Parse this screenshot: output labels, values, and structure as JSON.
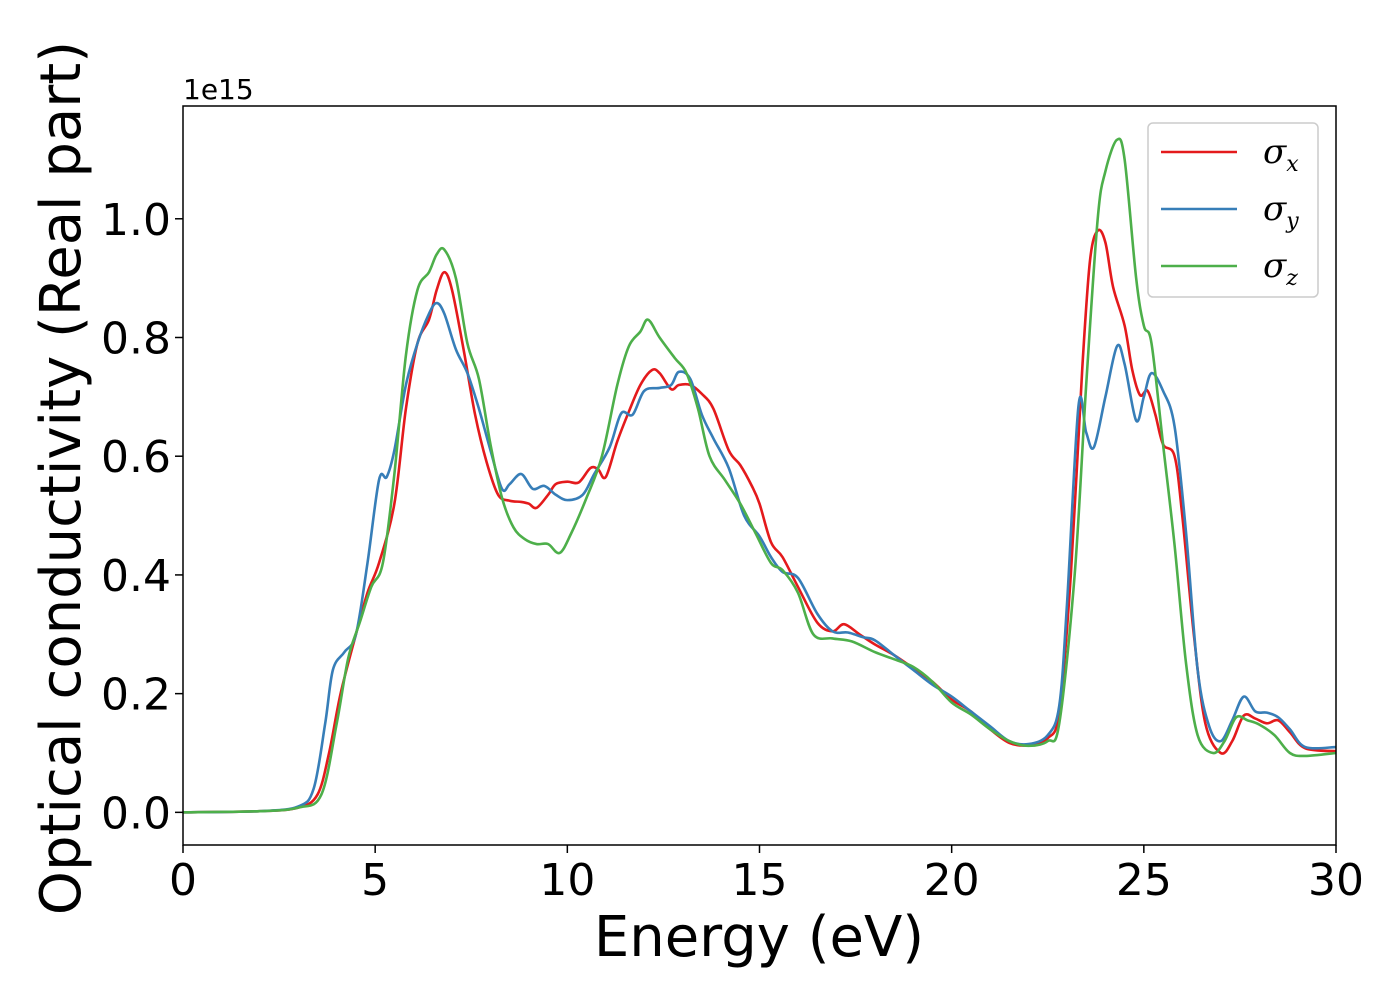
{
  "chart_data": {
    "type": "line",
    "title": "",
    "xlabel": "Energy (eV)",
    "ylabel": "Optical conductivity (Real part)",
    "y_offset_label": "1e15",
    "xlim": [
      0,
      30
    ],
    "ylim": [
      -0.055,
      1.19
    ],
    "xticks": [
      0,
      5,
      10,
      15,
      20,
      25,
      30
    ],
    "yticks": [
      0.0,
      0.2,
      0.4,
      0.6,
      0.8,
      1.0
    ],
    "xtick_labels": [
      "0",
      "5",
      "10",
      "15",
      "20",
      "25",
      "30"
    ],
    "ytick_labels": [
      "0.0",
      "0.2",
      "0.4",
      "0.6",
      "0.8",
      "1.0"
    ],
    "grid": false,
    "legend_position": "top-right",
    "series": [
      {
        "name": "σx",
        "symbol": "σ",
        "subscript": "x",
        "color": "#e41a1c",
        "points": [
          [
            0,
            0
          ],
          [
            2,
            0.002
          ],
          [
            3,
            0.008
          ],
          [
            3.5,
            0.03
          ],
          [
            3.8,
            0.1
          ],
          [
            4.1,
            0.2
          ],
          [
            4.5,
            0.3
          ],
          [
            4.8,
            0.37
          ],
          [
            5.1,
            0.42
          ],
          [
            5.5,
            0.52
          ],
          [
            5.8,
            0.68
          ],
          [
            6.1,
            0.79
          ],
          [
            6.4,
            0.83
          ],
          [
            6.6,
            0.88
          ],
          [
            6.8,
            0.91
          ],
          [
            7.0,
            0.88
          ],
          [
            7.3,
            0.78
          ],
          [
            7.6,
            0.67
          ],
          [
            7.9,
            0.59
          ],
          [
            8.2,
            0.535
          ],
          [
            8.5,
            0.525
          ],
          [
            8.8,
            0.523
          ],
          [
            9.0,
            0.52
          ],
          [
            9.2,
            0.513
          ],
          [
            9.5,
            0.535
          ],
          [
            9.7,
            0.553
          ],
          [
            10.0,
            0.557
          ],
          [
            10.3,
            0.556
          ],
          [
            10.6,
            0.58
          ],
          [
            10.8,
            0.578
          ],
          [
            11.0,
            0.565
          ],
          [
            11.3,
            0.625
          ],
          [
            11.6,
            0.675
          ],
          [
            11.9,
            0.72
          ],
          [
            12.2,
            0.745
          ],
          [
            12.4,
            0.74
          ],
          [
            12.7,
            0.713
          ],
          [
            12.9,
            0.72
          ],
          [
            13.2,
            0.72
          ],
          [
            13.5,
            0.705
          ],
          [
            13.8,
            0.68
          ],
          [
            14.2,
            0.61
          ],
          [
            14.5,
            0.585
          ],
          [
            14.8,
            0.55
          ],
          [
            15.0,
            0.52
          ],
          [
            15.3,
            0.455
          ],
          [
            15.6,
            0.43
          ],
          [
            16.0,
            0.38
          ],
          [
            16.5,
            0.32
          ],
          [
            16.9,
            0.305
          ],
          [
            17.2,
            0.317
          ],
          [
            17.6,
            0.3
          ],
          [
            18.0,
            0.283
          ],
          [
            18.5,
            0.265
          ],
          [
            19.0,
            0.243
          ],
          [
            19.5,
            0.22
          ],
          [
            20.0,
            0.19
          ],
          [
            20.5,
            0.17
          ],
          [
            21.0,
            0.14
          ],
          [
            21.5,
            0.117
          ],
          [
            22.0,
            0.113
          ],
          [
            22.5,
            0.125
          ],
          [
            22.8,
            0.17
          ],
          [
            23.1,
            0.4
          ],
          [
            23.4,
            0.75
          ],
          [
            23.6,
            0.93
          ],
          [
            23.8,
            0.98
          ],
          [
            24.0,
            0.96
          ],
          [
            24.2,
            0.885
          ],
          [
            24.5,
            0.82
          ],
          [
            24.7,
            0.745
          ],
          [
            24.9,
            0.703
          ],
          [
            25.1,
            0.71
          ],
          [
            25.3,
            0.67
          ],
          [
            25.5,
            0.62
          ],
          [
            25.8,
            0.6
          ],
          [
            26.0,
            0.5
          ],
          [
            26.3,
            0.3
          ],
          [
            26.6,
            0.15
          ],
          [
            27.0,
            0.1
          ],
          [
            27.3,
            0.12
          ],
          [
            27.6,
            0.163
          ],
          [
            27.9,
            0.158
          ],
          [
            28.2,
            0.15
          ],
          [
            28.5,
            0.155
          ],
          [
            28.8,
            0.135
          ],
          [
            29.2,
            0.108
          ],
          [
            30,
            0.103
          ]
        ]
      },
      {
        "name": "σy",
        "symbol": "σ",
        "subscript": "y",
        "color": "#377eb8",
        "points": [
          [
            0,
            0
          ],
          [
            2,
            0.002
          ],
          [
            3,
            0.01
          ],
          [
            3.4,
            0.04
          ],
          [
            3.7,
            0.15
          ],
          [
            3.9,
            0.24
          ],
          [
            4.2,
            0.27
          ],
          [
            4.5,
            0.3
          ],
          [
            4.8,
            0.42
          ],
          [
            5.1,
            0.56
          ],
          [
            5.3,
            0.565
          ],
          [
            5.5,
            0.61
          ],
          [
            5.8,
            0.72
          ],
          [
            6.1,
            0.79
          ],
          [
            6.4,
            0.84
          ],
          [
            6.6,
            0.858
          ],
          [
            6.8,
            0.84
          ],
          [
            7.1,
            0.78
          ],
          [
            7.4,
            0.74
          ],
          [
            7.7,
            0.68
          ],
          [
            8.0,
            0.61
          ],
          [
            8.3,
            0.545
          ],
          [
            8.5,
            0.553
          ],
          [
            8.8,
            0.57
          ],
          [
            9.1,
            0.545
          ],
          [
            9.4,
            0.55
          ],
          [
            9.7,
            0.535
          ],
          [
            10.0,
            0.526
          ],
          [
            10.4,
            0.535
          ],
          [
            10.7,
            0.57
          ],
          [
            11.1,
            0.615
          ],
          [
            11.4,
            0.672
          ],
          [
            11.7,
            0.67
          ],
          [
            12.0,
            0.71
          ],
          [
            12.4,
            0.715
          ],
          [
            12.7,
            0.72
          ],
          [
            12.9,
            0.742
          ],
          [
            13.2,
            0.73
          ],
          [
            13.5,
            0.67
          ],
          [
            13.8,
            0.63
          ],
          [
            14.2,
            0.58
          ],
          [
            14.6,
            0.5
          ],
          [
            15.0,
            0.465
          ],
          [
            15.3,
            0.43
          ],
          [
            15.6,
            0.405
          ],
          [
            16.0,
            0.395
          ],
          [
            16.5,
            0.335
          ],
          [
            16.9,
            0.305
          ],
          [
            17.3,
            0.303
          ],
          [
            17.7,
            0.295
          ],
          [
            18.0,
            0.29
          ],
          [
            18.5,
            0.265
          ],
          [
            19.0,
            0.24
          ],
          [
            19.5,
            0.215
          ],
          [
            20.0,
            0.195
          ],
          [
            20.5,
            0.17
          ],
          [
            21.0,
            0.145
          ],
          [
            21.5,
            0.12
          ],
          [
            22.0,
            0.115
          ],
          [
            22.5,
            0.13
          ],
          [
            22.8,
            0.18
          ],
          [
            23.0,
            0.35
          ],
          [
            23.3,
            0.685
          ],
          [
            23.5,
            0.64
          ],
          [
            23.7,
            0.615
          ],
          [
            24.0,
            0.7
          ],
          [
            24.3,
            0.785
          ],
          [
            24.5,
            0.755
          ],
          [
            24.8,
            0.66
          ],
          [
            25.0,
            0.7
          ],
          [
            25.2,
            0.74
          ],
          [
            25.5,
            0.71
          ],
          [
            25.8,
            0.65
          ],
          [
            26.1,
            0.47
          ],
          [
            26.4,
            0.24
          ],
          [
            26.7,
            0.145
          ],
          [
            27.0,
            0.12
          ],
          [
            27.3,
            0.155
          ],
          [
            27.6,
            0.195
          ],
          [
            27.9,
            0.17
          ],
          [
            28.2,
            0.168
          ],
          [
            28.5,
            0.16
          ],
          [
            28.8,
            0.14
          ],
          [
            29.2,
            0.11
          ],
          [
            30,
            0.11
          ]
        ]
      },
      {
        "name": "σz",
        "symbol": "σ",
        "subscript": "z",
        "color": "#4daf4a",
        "points": [
          [
            0,
            0
          ],
          [
            2,
            0.002
          ],
          [
            3,
            0.008
          ],
          [
            3.6,
            0.03
          ],
          [
            4.0,
            0.15
          ],
          [
            4.3,
            0.26
          ],
          [
            4.6,
            0.32
          ],
          [
            4.9,
            0.38
          ],
          [
            5.2,
            0.42
          ],
          [
            5.5,
            0.57
          ],
          [
            5.8,
            0.77
          ],
          [
            6.1,
            0.88
          ],
          [
            6.4,
            0.91
          ],
          [
            6.6,
            0.94
          ],
          [
            6.8,
            0.948
          ],
          [
            7.1,
            0.9
          ],
          [
            7.4,
            0.79
          ],
          [
            7.7,
            0.73
          ],
          [
            8.0,
            0.62
          ],
          [
            8.3,
            0.53
          ],
          [
            8.6,
            0.48
          ],
          [
            8.9,
            0.46
          ],
          [
            9.2,
            0.452
          ],
          [
            9.5,
            0.452
          ],
          [
            9.8,
            0.437
          ],
          [
            10.1,
            0.47
          ],
          [
            10.5,
            0.53
          ],
          [
            10.9,
            0.6
          ],
          [
            11.3,
            0.72
          ],
          [
            11.6,
            0.785
          ],
          [
            11.9,
            0.81
          ],
          [
            12.1,
            0.83
          ],
          [
            12.4,
            0.8
          ],
          [
            12.8,
            0.765
          ],
          [
            13.1,
            0.74
          ],
          [
            13.4,
            0.68
          ],
          [
            13.7,
            0.6
          ],
          [
            14.1,
            0.56
          ],
          [
            14.5,
            0.52
          ],
          [
            14.9,
            0.47
          ],
          [
            15.3,
            0.42
          ],
          [
            15.6,
            0.408
          ],
          [
            16.0,
            0.37
          ],
          [
            16.4,
            0.3
          ],
          [
            16.9,
            0.293
          ],
          [
            17.4,
            0.288
          ],
          [
            18.0,
            0.27
          ],
          [
            18.5,
            0.258
          ],
          [
            19.0,
            0.245
          ],
          [
            19.5,
            0.22
          ],
          [
            20.0,
            0.185
          ],
          [
            20.5,
            0.165
          ],
          [
            21.0,
            0.14
          ],
          [
            21.5,
            0.12
          ],
          [
            22.0,
            0.112
          ],
          [
            22.5,
            0.12
          ],
          [
            22.8,
            0.15
          ],
          [
            23.2,
            0.4
          ],
          [
            23.5,
            0.72
          ],
          [
            23.8,
            1.0
          ],
          [
            24.0,
            1.08
          ],
          [
            24.3,
            1.133
          ],
          [
            24.5,
            1.1
          ],
          [
            24.8,
            0.9
          ],
          [
            25.0,
            0.82
          ],
          [
            25.2,
            0.79
          ],
          [
            25.5,
            0.62
          ],
          [
            25.8,
            0.45
          ],
          [
            26.1,
            0.25
          ],
          [
            26.4,
            0.13
          ],
          [
            26.8,
            0.1
          ],
          [
            27.1,
            0.12
          ],
          [
            27.4,
            0.16
          ],
          [
            27.7,
            0.155
          ],
          [
            28.0,
            0.148
          ],
          [
            28.4,
            0.13
          ],
          [
            28.8,
            0.1
          ],
          [
            29.2,
            0.095
          ],
          [
            30,
            0.1
          ]
        ]
      }
    ]
  }
}
